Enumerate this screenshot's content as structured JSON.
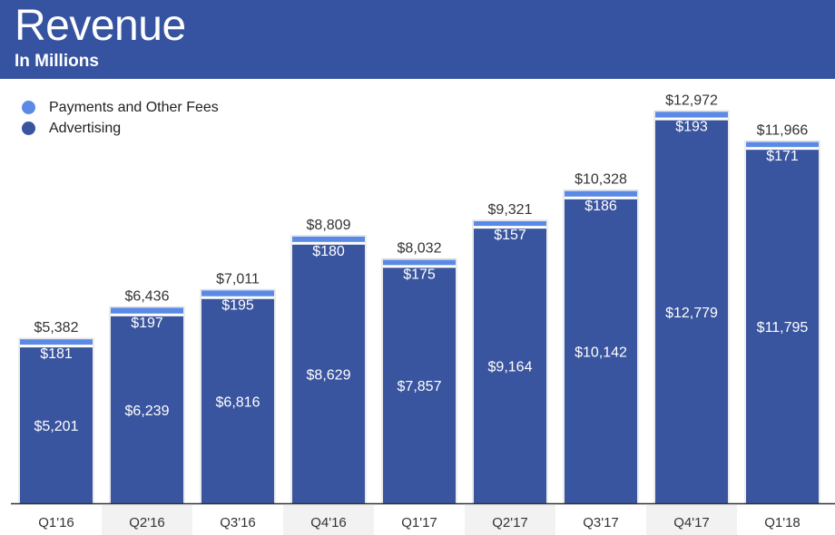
{
  "header": {
    "title": "Revenue",
    "subtitle": "In Millions"
  },
  "colors": {
    "header_background": "#3553a0",
    "advertising": "#3a559f",
    "payments": "#5b8ae6",
    "axis": "#333333",
    "label_dark": "#333333",
    "label_light": "#ffffff"
  },
  "chart_data": {
    "type": "bar",
    "stacked": true,
    "categories": [
      "Q1'16",
      "Q2'16",
      "Q3'16",
      "Q4'16",
      "Q1'17",
      "Q2'17",
      "Q3'17",
      "Q4'17",
      "Q1'18"
    ],
    "series": [
      {
        "name": "Advertising",
        "values": [
          5201,
          6239,
          6816,
          8629,
          7857,
          9164,
          10142,
          12779,
          11795
        ]
      },
      {
        "name": "Payments and Other Fees",
        "values": [
          181,
          197,
          195,
          180,
          175,
          157,
          186,
          193,
          171
        ]
      }
    ],
    "totals": [
      5382,
      6436,
      7011,
      8809,
      8032,
      9321,
      10328,
      12972,
      11966
    ],
    "labels": {
      "advertising": [
        "$5,201",
        "$6,239",
        "$6,816",
        "$8,629",
        "$7,857",
        "$9,164",
        "$10,142",
        "$12,779",
        "$11,795"
      ],
      "payments": [
        "$181",
        "$197",
        "$195",
        "$180",
        "$175",
        "$157",
        "$186",
        "$193",
        "$171"
      ],
      "totals": [
        "$5,382",
        "$6,436",
        "$7,011",
        "$8,809",
        "$8,032",
        "$9,321",
        "$10,328",
        "$12,972",
        "$11,966"
      ]
    },
    "legend": {
      "position": "top-left",
      "entries": [
        "Payments and Other Fees",
        "Advertising"
      ]
    },
    "ylim": [
      0,
      13500
    ],
    "grid": false
  }
}
